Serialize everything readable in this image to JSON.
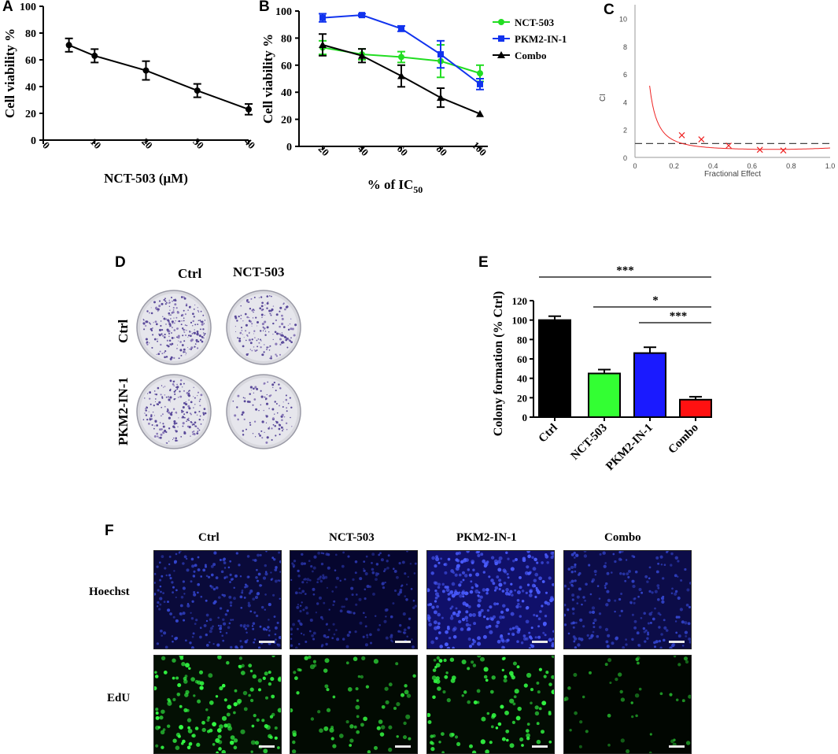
{
  "panels": {
    "A": {
      "letter": "A"
    },
    "B": {
      "letter": "B"
    },
    "C": {
      "letter": "C"
    },
    "D": {
      "letter": "D",
      "col_labels": [
        "Ctrl",
        "NCT-503"
      ],
      "row_labels": [
        "Ctrl",
        "PKM2-IN-1"
      ]
    },
    "E": {
      "letter": "E"
    },
    "F": {
      "letter": "F",
      "col_labels": [
        "Ctrl",
        "NCT-503",
        "PKM2-IN-1",
        "Combo"
      ],
      "row_labels": [
        "Hoechst",
        "EdU"
      ]
    }
  },
  "chart_data": [
    {
      "panel": "A",
      "type": "line",
      "xlabel": "NCT-503 (μM)",
      "ylabel": "Cell viability %",
      "x": [
        5,
        10,
        20,
        30,
        40
      ],
      "y": [
        71,
        63,
        52,
        37,
        23
      ],
      "err": [
        5,
        5,
        7,
        5,
        4
      ],
      "xlim": [
        0,
        40
      ],
      "ylim": [
        0,
        100
      ],
      "xticks": [
        "0",
        "10",
        "20",
        "30",
        "40"
      ],
      "yticks": [
        "0",
        "20",
        "40",
        "60",
        "80",
        "100"
      ],
      "colors": {
        "line": "#000000"
      }
    },
    {
      "panel": "B",
      "type": "line",
      "xlabel_main": "% of IC",
      "xlabel_sub": "50",
      "ylabel": "Cell viability %",
      "categories": [
        "20",
        "40",
        "60",
        "80",
        "100"
      ],
      "ylim": [
        0,
        100
      ],
      "yticks": [
        "0",
        "20",
        "40",
        "60",
        "80",
        "100"
      ],
      "legend_position": "right",
      "series": [
        {
          "name": "NCT-503",
          "values": [
            73,
            68,
            66,
            63,
            54
          ],
          "err": [
            5,
            4,
            4,
            12,
            6
          ],
          "color": "#22dd22",
          "marker": "circle"
        },
        {
          "name": "PKM2-IN-1",
          "values": [
            95,
            97,
            87,
            68,
            46
          ],
          "err": [
            3,
            1,
            2,
            10,
            4
          ],
          "color": "#1133ee",
          "marker": "square"
        },
        {
          "name": "Combo",
          "values": [
            75,
            67,
            52,
            36,
            24
          ],
          "err": [
            8,
            5,
            8,
            7,
            0
          ],
          "color": "#000000",
          "marker": "triangle"
        }
      ]
    },
    {
      "panel": "C",
      "type": "scatter",
      "xlabel": "Fractional Effect",
      "ylabel": "CI",
      "xlim": [
        0,
        1.0
      ],
      "ylim": [
        0,
        11
      ],
      "xticks": [
        "0",
        "0.2",
        "0.4",
        "0.6",
        "0.8",
        "1.0"
      ],
      "yticks": [
        "0",
        "2",
        "4",
        "6",
        "8",
        "10"
      ],
      "reference_line": 1,
      "curve_color": "#ee2222",
      "points": [
        {
          "x": 0.24,
          "y": 1.6
        },
        {
          "x": 0.34,
          "y": 1.3
        },
        {
          "x": 0.48,
          "y": 0.85
        },
        {
          "x": 0.64,
          "y": 0.55
        },
        {
          "x": 0.76,
          "y": 0.5
        }
      ]
    },
    {
      "panel": "E",
      "type": "bar",
      "ylabel": "Colony formation  (% Ctrl)",
      "categories": [
        "Ctrl",
        "NCT-503",
        "PKM2-IN-1",
        "Combo"
      ],
      "values": [
        100,
        45,
        66,
        18
      ],
      "err": [
        4,
        4,
        6,
        3
      ],
      "colors": [
        "#000000",
        "#33ff33",
        "#1a1aff",
        "#ff1111"
      ],
      "ylim": [
        0,
        120
      ],
      "yticks": [
        "0",
        "20",
        "40",
        "60",
        "80",
        "100",
        "120"
      ],
      "significance": [
        {
          "from": "Ctrl",
          "to": "Combo",
          "label": "***"
        },
        {
          "from": "NCT-503",
          "to": "Combo",
          "label": "*"
        },
        {
          "from": "PKM2-IN-1",
          "to": "Combo",
          "label": "***"
        }
      ]
    }
  ]
}
